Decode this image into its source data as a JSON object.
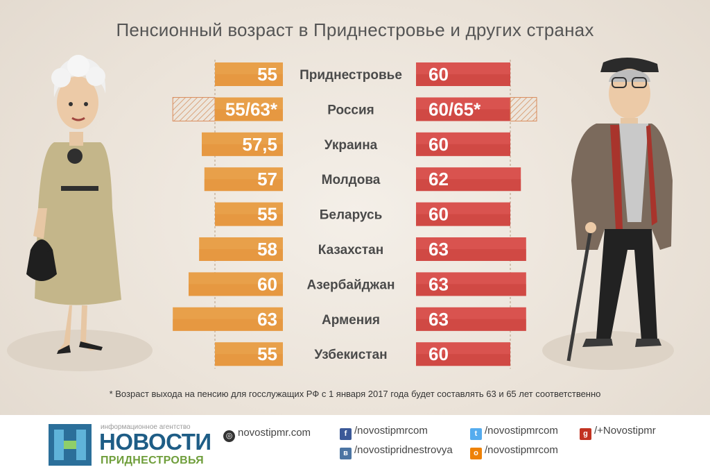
{
  "title": "Пенсионный возраст в Приднестровье и других странах",
  "chart_data": {
    "type": "bar",
    "categories": [
      "Приднестровье",
      "Россия",
      "Украина",
      "Молдова",
      "Беларусь",
      "Казахстан",
      "Азербайджан",
      "Армения",
      "Узбекистан"
    ],
    "series": [
      {
        "values": [
          55,
          55,
          57.5,
          57,
          55,
          58,
          60,
          63,
          55
        ],
        "labels": [
          "55",
          "55/63*",
          "57,5",
          "57",
          "55",
          "58",
          "60",
          "63",
          "55"
        ],
        "extended_values": [
          null,
          63,
          null,
          null,
          null,
          null,
          null,
          null,
          null
        ],
        "color": "#e8a04a"
      },
      {
        "values": [
          60,
          60,
          60,
          62,
          60,
          63,
          63,
          63,
          60
        ],
        "labels": [
          "60",
          "60/65*",
          "60",
          "62",
          "60",
          "63",
          "63",
          "63",
          "60"
        ],
        "extended_values": [
          null,
          65,
          null,
          null,
          null,
          null,
          null,
          null,
          null
        ],
        "color": "#d9534f"
      }
    ],
    "orientation": "horizontal, mirrored"
  },
  "footnote": "* Возраст выхода на пенсию для госслужащих РФ с 1 января 2017 года будет составлять 63 и  65 лет соответственно",
  "footer": {
    "logo_sub": "информационное агентство",
    "logo_title": "НОВОСТИ",
    "logo_tag": "ПРИДНЕСТРОВЬЯ",
    "site": "novostipmr.com",
    "facebook": "/novostipmrcom",
    "vk": "/novostipridnestrovya",
    "twitter": "/novostipmrcom",
    "odnoklassniki": "/novostipmrcom",
    "gplus": "/+Novostipmr"
  }
}
